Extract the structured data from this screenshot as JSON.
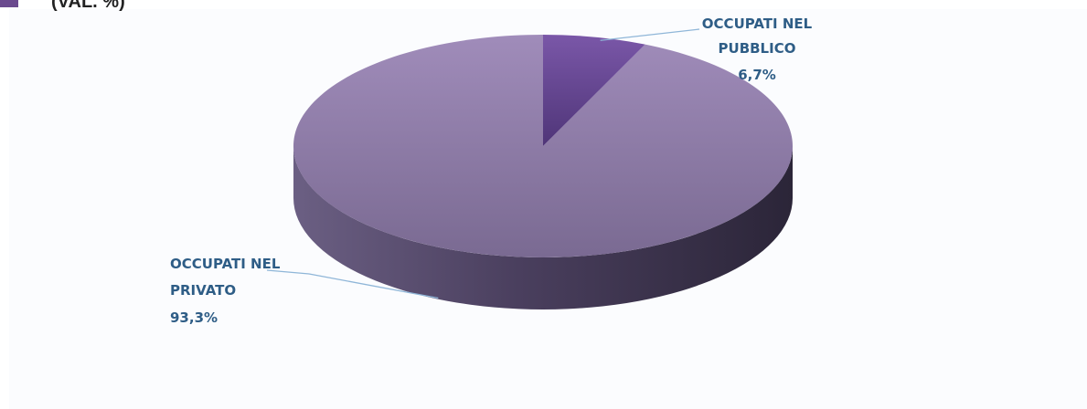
{
  "header": {
    "subtitle_fragment": "(VAL. %)"
  },
  "chart_data": {
    "type": "pie",
    "title": "",
    "slices": [
      {
        "label_lines": [
          "OCCUPATI NEL",
          "PUBBLICO"
        ],
        "value": 6.7,
        "value_label": "6,7%",
        "color": "#6a4c96"
      },
      {
        "label_lines": [
          "OCCUPATI NEL",
          "PRIVATO"
        ],
        "value": 93.3,
        "value_label": "93,3%",
        "color": "#8f7ba6"
      }
    ],
    "three_d": true
  }
}
